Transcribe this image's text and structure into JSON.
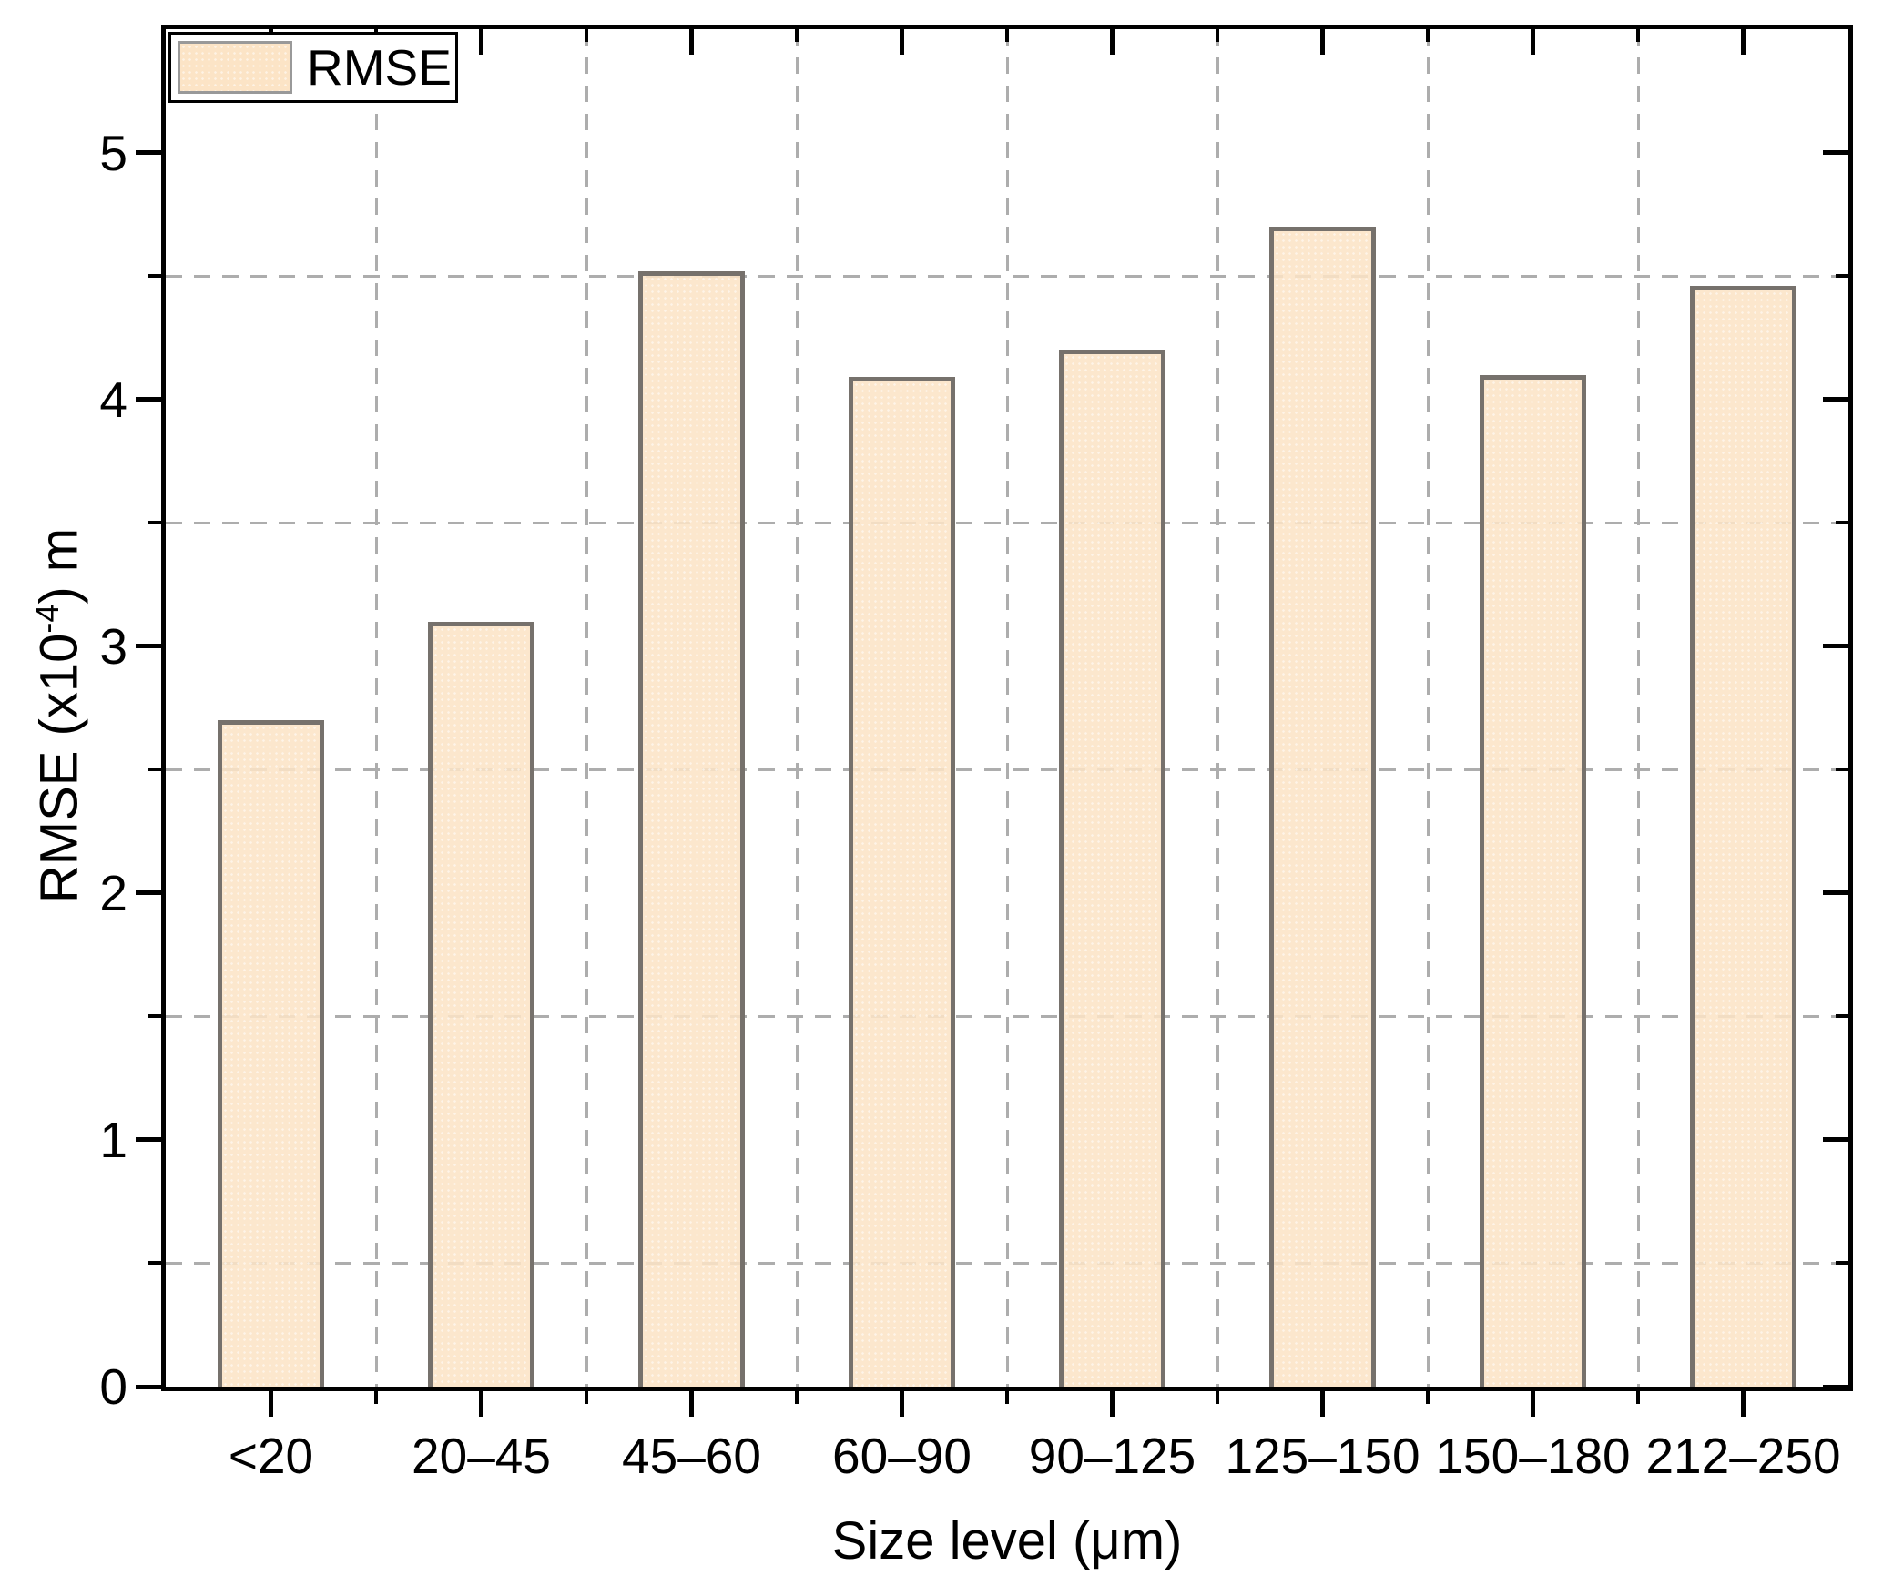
{
  "chart_data": {
    "type": "bar",
    "title": "",
    "xlabel": "Size level (μm)",
    "ylabel": "RMSE (x10⁻⁴) m",
    "ylabel_parts": {
      "prefix": "RMSE (x10",
      "exponent": "-4",
      "suffix": ") m"
    },
    "categories": [
      "<20",
      "20–45",
      "45–60",
      "60–90",
      "90–125",
      "125–150",
      "150–180",
      "212–250"
    ],
    "values": [
      2.7,
      3.1,
      4.52,
      4.09,
      4.2,
      4.7,
      4.1,
      4.46
    ],
    "series_name": "RMSE",
    "ylim": [
      0,
      5.5
    ],
    "y_major_ticks": [
      0,
      1,
      2,
      3,
      4,
      5
    ],
    "y_minor_ticks": [
      0.5,
      1.5,
      2.5,
      3.5,
      4.5
    ],
    "grid": "minor-only-dashed",
    "legend_position": "top-left",
    "colors": {
      "bar_fill": "#FCE4C6",
      "bar_edge": "#76716C",
      "grid": "#ADADAD",
      "axis": "#000000",
      "legend_swatch_border": "#999999"
    }
  },
  "legend": {
    "label": "RMSE"
  }
}
